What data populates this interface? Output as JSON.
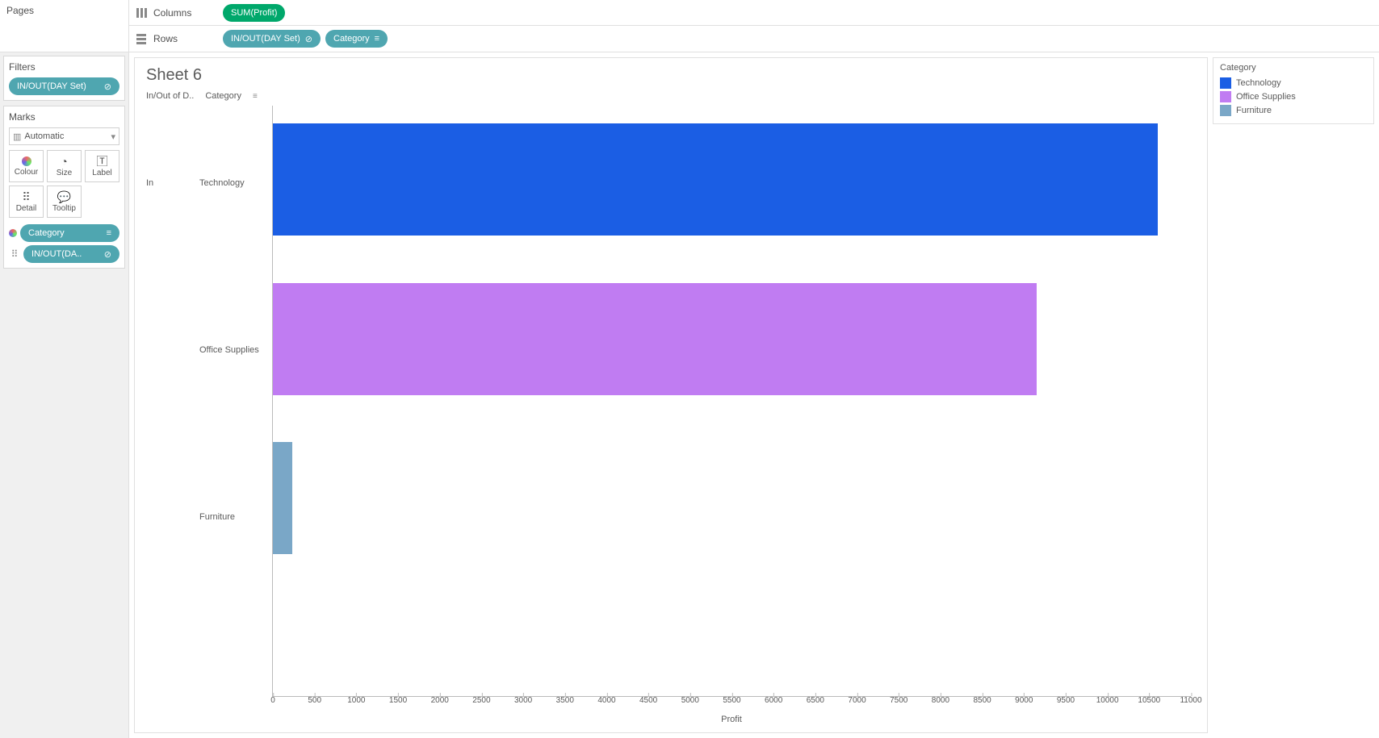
{
  "shelves": {
    "pages_label": "Pages",
    "columns_label": "Columns",
    "rows_label": "Rows",
    "columns_pill": "SUM(Profit)",
    "rows_pill_1": "IN/OUT(DAY Set)",
    "rows_pill_2": "Category"
  },
  "side": {
    "filters_label": "Filters",
    "filters_pill": "IN/OUT(DAY Set)",
    "marks_label": "Marks",
    "marks_type": "Automatic",
    "mark_btns": {
      "colour": "Colour",
      "size": "Size",
      "label": "Label",
      "detail": "Detail",
      "tooltip": "Tooltip"
    },
    "mark_pill_1": "Category",
    "mark_pill_2": "IN/OUT(DA.."
  },
  "viz": {
    "sheet_title": "Sheet 6",
    "header_col1": "In/Out of D..",
    "header_col2": "Category",
    "row_group_label": "In",
    "x_axis_title": "Profit",
    "x_axis": {
      "min": 0,
      "max": 11000,
      "step": 500
    },
    "bar_row_height_pct": 19,
    "bar_row_gap_pct": 8,
    "bar_top_offset_pct": 3,
    "rows": [
      {
        "label": "Technology",
        "value": 10600,
        "color": "#1b5ee4"
      },
      {
        "label": "Office Supplies",
        "value": 9150,
        "color": "#c07cf2"
      },
      {
        "label": "Furniture",
        "value": 230,
        "color": "#7aa7c7"
      }
    ]
  },
  "legend": {
    "title": "Category",
    "items": [
      {
        "label": "Technology",
        "color": "#1b5ee4"
      },
      {
        "label": "Office Supplies",
        "color": "#c07cf2"
      },
      {
        "label": "Furniture",
        "color": "#7aa7c7"
      }
    ]
  }
}
